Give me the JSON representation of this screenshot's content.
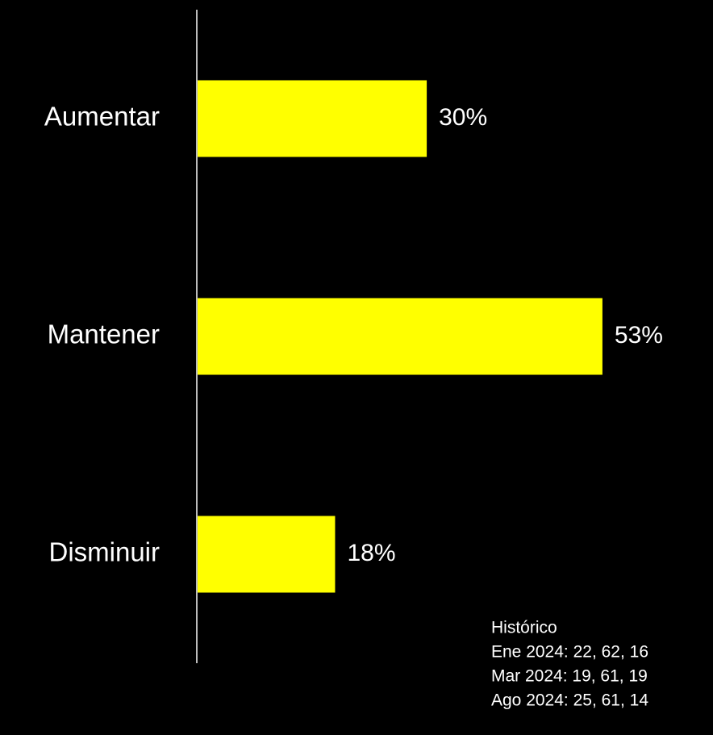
{
  "chart_data": {
    "type": "bar",
    "orientation": "horizontal",
    "categories": [
      "Aumentar",
      "Mantener",
      "Disminuir"
    ],
    "values": [
      30,
      53,
      18
    ],
    "value_labels": [
      "30%",
      "53%",
      "18%"
    ],
    "color": "#ffff00",
    "annotation": [
      "Histórico",
      "Ene 2024: 22, 62, 16",
      "Mar 2024: 19, 61, 19",
      "Ago 2024: 25, 61, 14"
    ]
  }
}
